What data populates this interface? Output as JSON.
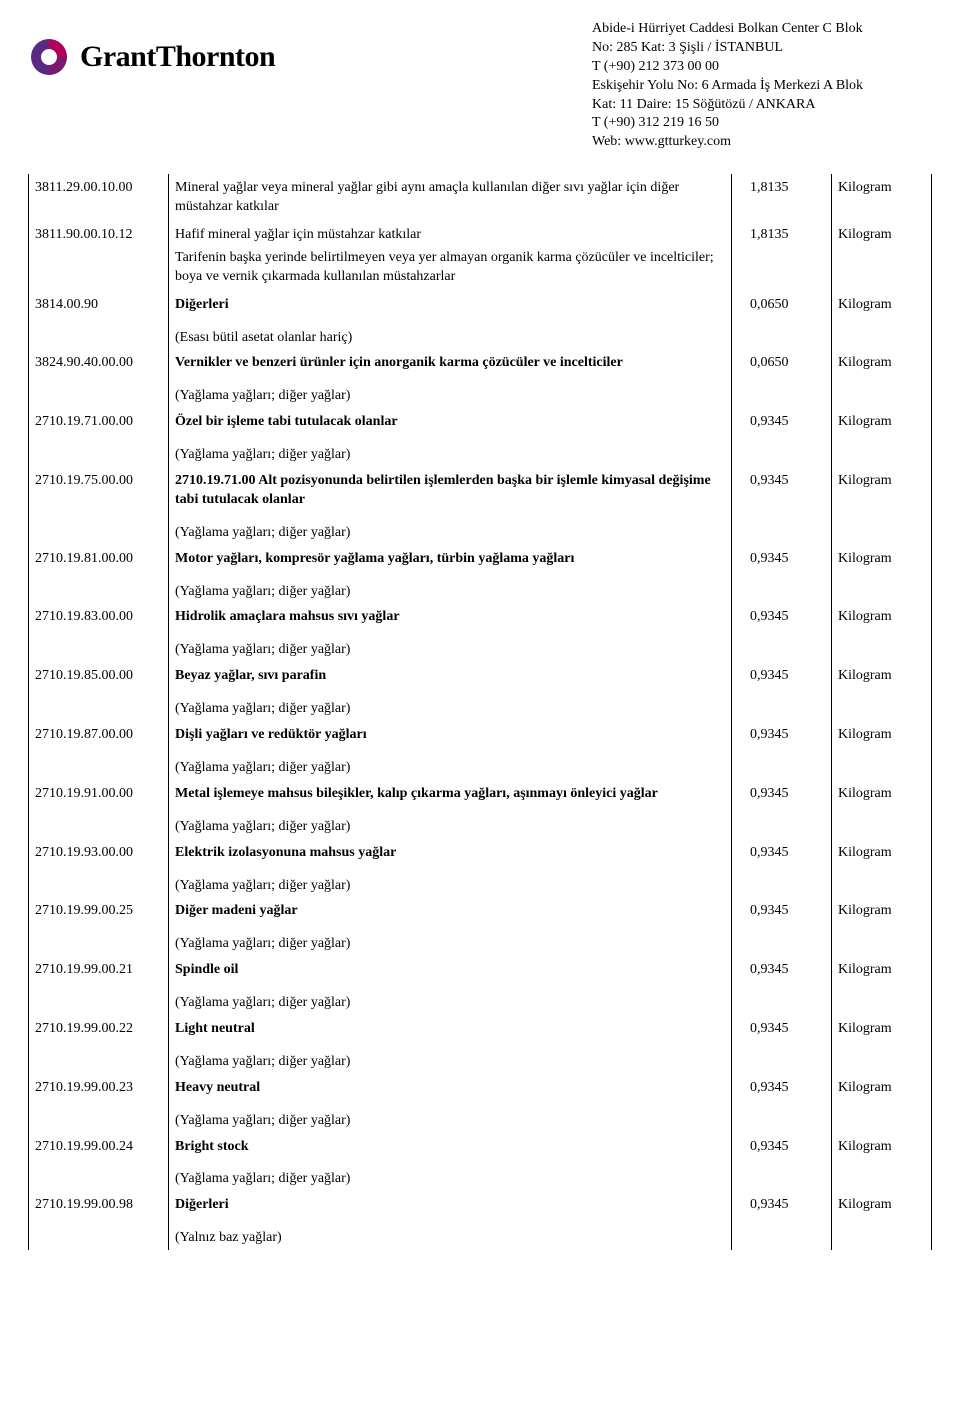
{
  "header": {
    "brand": "GrantThornton",
    "address_lines": [
      "Abide-i Hürriyet Caddesi Bolkan Center C Blok",
      "No: 285 Kat: 3 Şişli / İSTANBUL",
      "T  (+90) 212 373 00 00",
      "Eskişehir Yolu No: 6 Armada İş Merkezi A Blok",
      "Kat: 11 Daire: 15 Söğütözü / ANKARA",
      "T  (+90) 312 219 16 50",
      "Web:  www.gtturkey.com"
    ]
  },
  "labels": {
    "yag_note": "(Yağlama yağları; diğer yağlar)",
    "esas_note": "(Esası bütil asetat olanlar hariç)",
    "baz_note": "(Yalnız baz yağlar)"
  },
  "rows": [
    {
      "code": "3811.29.00.10.00",
      "desc": "Mineral yağlar veya mineral yağlar gibi aynı amaçla kullanılan diğer sıvı yağlar için diğer müstahzar katkılar",
      "val": "1,8135",
      "unit": "Kilogram",
      "bold": false
    },
    {
      "code": "3811.90.00.10.12",
      "desc": "Hafif mineral yağlar için müstahzar katkılar",
      "val": "1,8135",
      "unit": "Kilogram",
      "bold": false,
      "sub": "Tarifenin başka yerinde belirtilmeyen veya yer almayan organik karma çözücüler ve incelticiler; boya ve vernik çıkarmada kullanılan müstahzarlar"
    },
    {
      "code": "3814.00.90",
      "desc": "Diğerleri",
      "val": "0,0650",
      "unit": "Kilogram",
      "bold": true
    },
    {
      "esas": true
    },
    {
      "code": "3824.90.40.00.00",
      "desc": "Vernikler ve benzeri ürünler için anorganik karma çözücüler ve incelticiler",
      "val": "0,0650",
      "unit": "Kilogram",
      "bold": true
    },
    {
      "yag": true
    },
    {
      "code": "2710.19.71.00.00",
      "desc": "Özel bir işleme tabi tutulacak olanlar",
      "val": "0,9345",
      "unit": "Kilogram",
      "bold": true
    },
    {
      "yag": true
    },
    {
      "code": "2710.19.75.00.00",
      "desc": "2710.19.71.00 Alt pozisyonunda belirtilen işlemlerden başka bir işlemle kimyasal değişime tabi tutulacak olanlar",
      "val": "0,9345",
      "unit": "Kilogram",
      "bold": true
    },
    {
      "yag": true
    },
    {
      "code": "2710.19.81.00.00",
      "desc": "Motor yağları, kompresör yağlama yağları, türbin yağlama yağları",
      "val": "0,9345",
      "unit": "Kilogram",
      "bold": true
    },
    {
      "yag": true
    },
    {
      "code": "2710.19.83.00.00",
      "desc": "Hidrolik amaçlara mahsus sıvı yağlar",
      "val": "0,9345",
      "unit": "Kilogram",
      "bold": true
    },
    {
      "yag": true
    },
    {
      "code": "2710.19.85.00.00",
      "desc": "Beyaz yağlar, sıvı parafin",
      "val": "0,9345",
      "unit": "Kilogram",
      "bold": true
    },
    {
      "yag": true
    },
    {
      "code": "2710.19.87.00.00",
      "desc": "Dişli yağları ve redüktör yağları",
      "val": "0,9345",
      "unit": "Kilogram",
      "bold": true
    },
    {
      "yag": true
    },
    {
      "code": "2710.19.91.00.00",
      "desc": "Metal işlemeye mahsus bileşikler, kalıp çıkarma yağları, aşınmayı önleyici yağlar",
      "val": "0,9345",
      "unit": "Kilogram",
      "bold": true
    },
    {
      "yag": true
    },
    {
      "code": "2710.19.93.00.00",
      "desc": "Elektrik izolasyonuna mahsus yağlar",
      "val": "0,9345",
      "unit": "Kilogram",
      "bold": true
    },
    {
      "yag": true
    },
    {
      "code": "2710.19.99.00.25",
      "desc": "Diğer madeni yağlar",
      "val": "0,9345",
      "unit": "Kilogram",
      "bold": true
    },
    {
      "yag": true
    },
    {
      "code": "2710.19.99.00.21",
      "desc": "Spindle oil",
      "val": "0,9345",
      "unit": "Kilogram",
      "bold": true
    },
    {
      "yag": true
    },
    {
      "code": "2710.19.99.00.22",
      "desc": "Light neutral",
      "val": "0,9345",
      "unit": "Kilogram",
      "bold": true
    },
    {
      "yag": true
    },
    {
      "code": "2710.19.99.00.23",
      "desc": "Heavy neutral",
      "val": "0,9345",
      "unit": "Kilogram",
      "bold": true
    },
    {
      "yag": true
    },
    {
      "code": "2710.19.99.00.24",
      "desc": "Bright stock",
      "val": "0,9345",
      "unit": "Kilogram",
      "bold": true
    },
    {
      "yag": true
    },
    {
      "code": "2710.19.99.00.98",
      "desc": "Diğerleri",
      "val": "0,9345",
      "unit": "Kilogram",
      "bold": true
    },
    {
      "baz": true
    }
  ]
}
